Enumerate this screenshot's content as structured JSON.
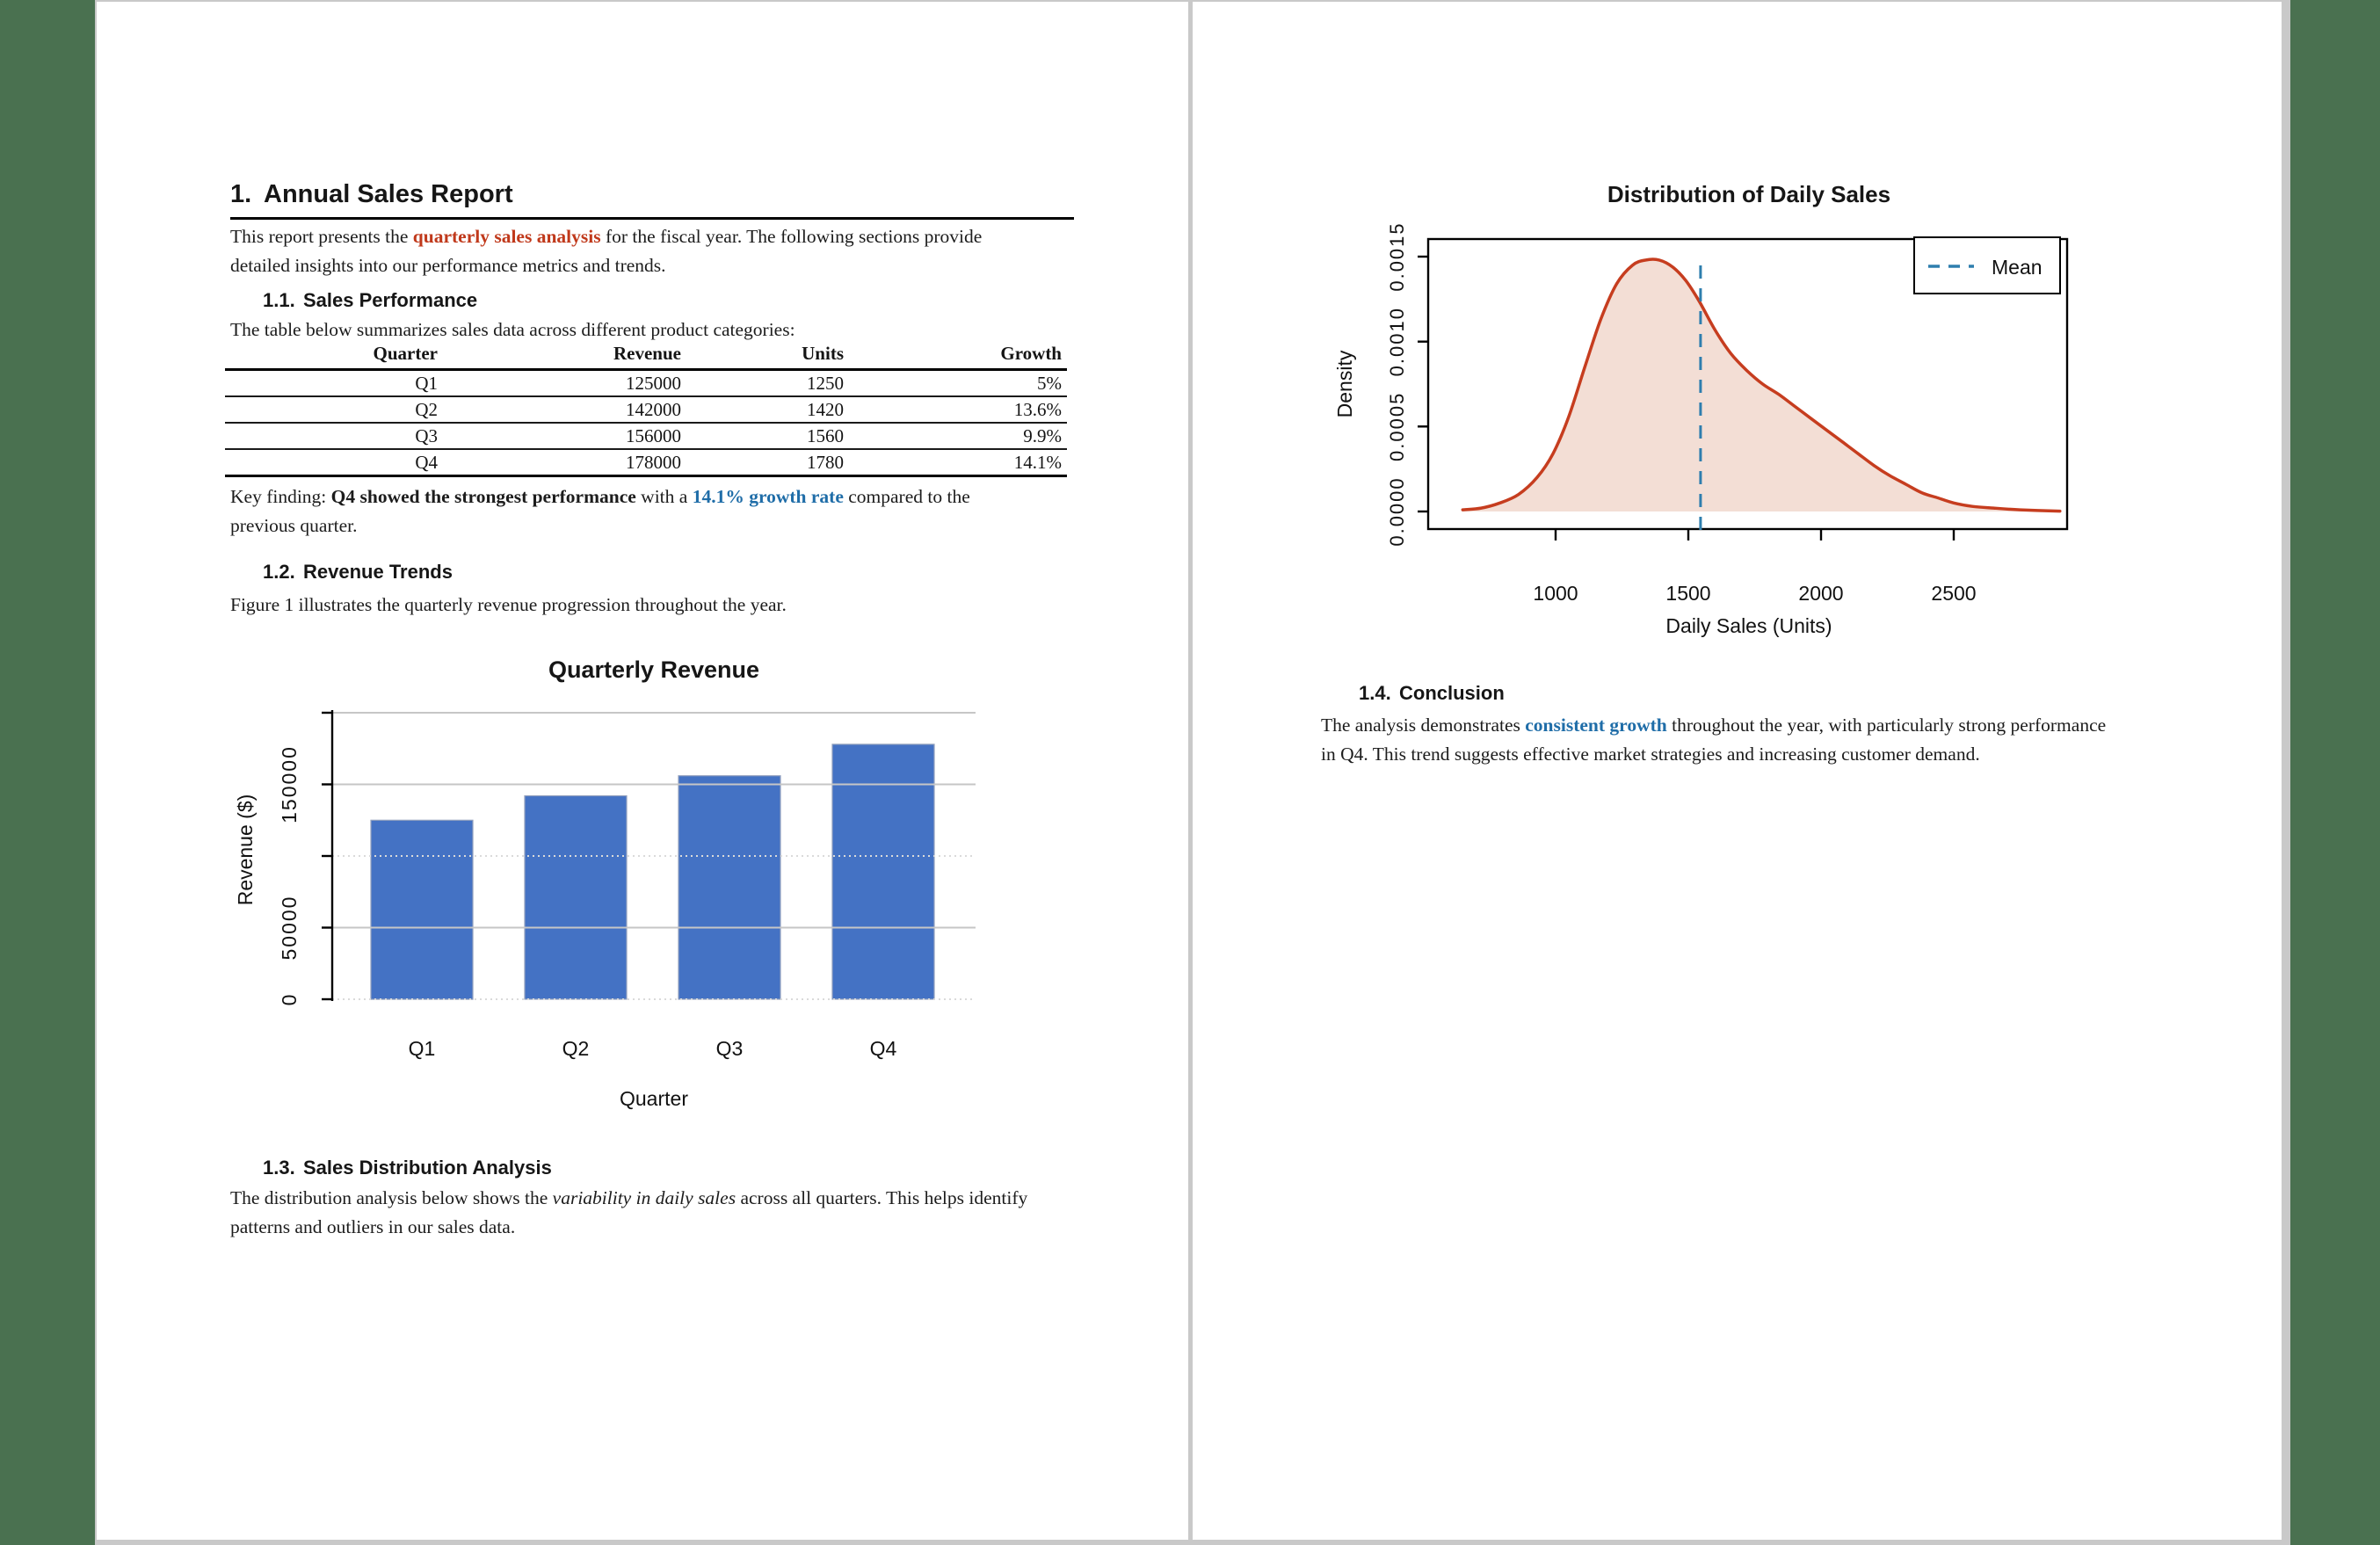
{
  "viewer": {
    "background_color": "#4a7150",
    "page_gap_color": "#c9c9c9",
    "accent_red": "#c0391b",
    "accent_blue": "#1f6da8"
  },
  "page1": {
    "heading": {
      "number": "1.",
      "text": "Annual Sales Report"
    },
    "intro": {
      "pre": "This report presents the ",
      "highlight": "quarterly sales analysis",
      "post": " for the fiscal year. The following sections provide detailed insights into our performance metrics and trends."
    },
    "s11": {
      "number": "1.1.",
      "title": "Sales Performance"
    },
    "table_intro": "The table below summarizes sales data across different product categories:",
    "sales_table": {
      "headers": [
        "Quarter",
        "Revenue",
        "Units",
        "Growth"
      ],
      "rows": [
        [
          "Q1",
          "125000",
          "1250",
          "5%"
        ],
        [
          "Q2",
          "142000",
          "1420",
          "13.6%"
        ],
        [
          "Q3",
          "156000",
          "1560",
          "9.9%"
        ],
        [
          "Q4",
          "178000",
          "1780",
          "14.1%"
        ]
      ]
    },
    "key_finding": {
      "pre": "Key finding: ",
      "bold": "Q4 showed the strongest performance",
      "mid": " with a ",
      "highlight": "14.1% growth rate",
      "post": " compared to the previous quarter."
    },
    "s12": {
      "number": "1.2.",
      "title": "Revenue Trends"
    },
    "figure_caption": "Figure 1 illustrates the quarterly revenue progression throughout the year.",
    "s13": {
      "number": "1.3.",
      "title": "Sales Distribution Analysis"
    },
    "dist_para": {
      "pre": "The distribution analysis below shows the ",
      "italic": "variability in daily sales",
      "post": " across all quarters. This helps identify patterns and outliers in our sales data."
    }
  },
  "page2": {
    "s14": {
      "number": "1.4.",
      "title": "Conclusion"
    },
    "conclusion": {
      "pre": "The analysis demonstrates ",
      "highlight": "consistent growth",
      "post": " throughout the year, with particularly strong performance in Q4. This trend suggests effective market strategies and increasing customer demand."
    }
  },
  "chart_data": [
    {
      "type": "bar",
      "title": "Quarterly Revenue",
      "xlabel": "Quarter",
      "ylabel": "Revenue ($)",
      "categories": [
        "Q1",
        "Q2",
        "Q3",
        "Q4"
      ],
      "values": [
        125000,
        142000,
        156000,
        178000
      ],
      "ylim": [
        0,
        200000
      ],
      "grid_step": 50000,
      "ytick_labels": {
        "0": "0",
        "50000": "50000",
        "150000": "150000"
      },
      "dotted_levels": [
        0,
        100000
      ],
      "bar_color": "#4472c4",
      "bar_edge_color": "#93a1bd",
      "grid_solid_color": "#c6c6c6",
      "grid_dotted_color": "#dadada",
      "legend_position": "none",
      "grid": true
    },
    {
      "type": "area",
      "title": "Distribution of Daily Sales",
      "xlabel": "Daily Sales (Units)",
      "ylabel": "Density",
      "xticks": [
        1000,
        1500,
        2000,
        2500
      ],
      "ytick_labels": [
        "0.0000",
        "0.0005",
        "0.0010",
        "0.0015"
      ],
      "xlim": [
        565,
        2680
      ],
      "ylim": [
        0,
        0.0015
      ],
      "curve": {
        "x": [
          650,
          720,
          790,
          860,
          930,
          990,
          1050,
          1110,
          1170,
          1230,
          1290,
          1340,
          1390,
          1440,
          1490,
          1540,
          1600,
          1660,
          1720,
          1780,
          1840,
          1900,
          1960,
          2020,
          2080,
          2140,
          2200,
          2260,
          2320,
          2380,
          2440,
          2500,
          2570,
          2650,
          2750,
          2900
        ],
        "y": [
          1e-05,
          2e-05,
          5e-05,
          0.0001,
          0.0002,
          0.00034,
          0.00056,
          0.00085,
          0.00113,
          0.00134,
          0.00145,
          0.00148,
          0.00148,
          0.00144,
          0.00136,
          0.00124,
          0.00107,
          0.00093,
          0.00083,
          0.00075,
          0.00069,
          0.00062,
          0.00055,
          0.00048,
          0.00041,
          0.00034,
          0.00027,
          0.00021,
          0.00016,
          0.00011,
          8e-05,
          5e-05,
          3e-05,
          2e-05,
          1e-05,
          2e-06
        ]
      },
      "mean_x": 1546,
      "legend": {
        "label": "Mean",
        "position": "top-right"
      },
      "line_color": "#c63d1f",
      "fill_color": "#f3ded5",
      "mean_color": "#2e7eae",
      "grid": false
    }
  ]
}
